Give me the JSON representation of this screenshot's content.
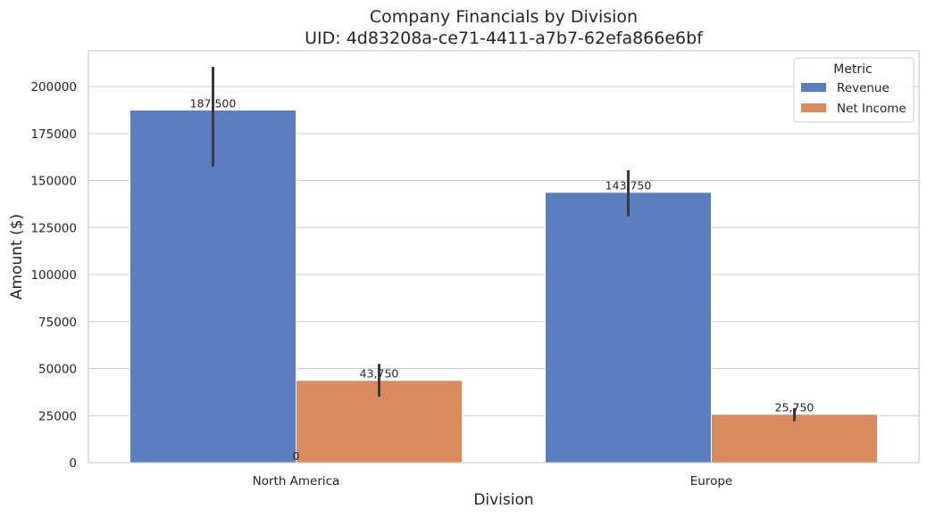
{
  "chart_data": {
    "type": "bar",
    "title": "Company Financials by Division",
    "subtitle": "UID: 4d83208a-ce71-4411-a7b7-62efa866e6bf",
    "xlabel": "Division",
    "ylabel": "Amount ($)",
    "categories": [
      "North America",
      "Europe"
    ],
    "ylim": [
      0,
      219000
    ],
    "yticks": [
      0,
      25000,
      50000,
      75000,
      100000,
      125000,
      150000,
      175000,
      200000
    ],
    "grid": true,
    "legend": {
      "title": "Metric",
      "placement": "top-right"
    },
    "series": [
      {
        "name": "Revenue",
        "color": "#5b7ec1",
        "values": [
          187500,
          143750
        ],
        "labels": [
          "187,500",
          "143,750"
        ],
        "error_bars": [
          [
            157500,
            210500
          ],
          [
            131000,
            155500
          ]
        ]
      },
      {
        "name": "Net Income",
        "color": "#d98b5f",
        "values": [
          43750,
          25750
        ],
        "labels": [
          "43,750",
          "25,750"
        ],
        "error_bars": [
          [
            35000,
            52500
          ],
          [
            22000,
            29000
          ]
        ]
      }
    ],
    "annotations": [
      {
        "text": "0",
        "x": "North America",
        "y": 0
      }
    ]
  }
}
